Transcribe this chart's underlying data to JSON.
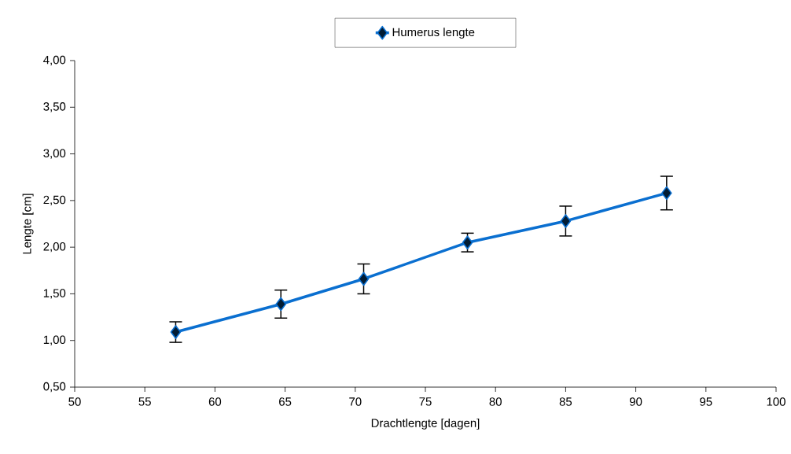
{
  "chart_data": {
    "type": "line",
    "xlabel": "Drachtlengte [dagen]",
    "ylabel": "Lengte [cm]",
    "x": [
      57.2,
      64.7,
      70.6,
      78.0,
      85.0,
      92.2
    ],
    "series": [
      {
        "name": "Humerus lengte",
        "color": "#0a6fd0",
        "values": [
          1.09,
          1.39,
          1.66,
          2.05,
          2.28,
          2.58
        ],
        "errors": [
          0.11,
          0.15,
          0.16,
          0.1,
          0.16,
          0.18
        ]
      }
    ],
    "xlim": [
      50,
      100
    ],
    "xticks": [
      50,
      55,
      60,
      65,
      70,
      75,
      80,
      85,
      90,
      95,
      100
    ],
    "ylim": [
      0.5,
      4.0
    ],
    "yticks": [
      {
        "value": 0.5,
        "label": "0,50"
      },
      {
        "value": 1.0,
        "label": "1,00"
      },
      {
        "value": 1.5,
        "label": "1,50"
      },
      {
        "value": 2.0,
        "label": "2,00"
      },
      {
        "value": 2.5,
        "label": "2,50"
      },
      {
        "value": 3.0,
        "label": "3,00"
      },
      {
        "value": 3.5,
        "label": "3,50"
      },
      {
        "value": 4.0,
        "label": "4,00"
      }
    ],
    "marker": "diamond",
    "line_style": "solid",
    "legend": "top"
  }
}
